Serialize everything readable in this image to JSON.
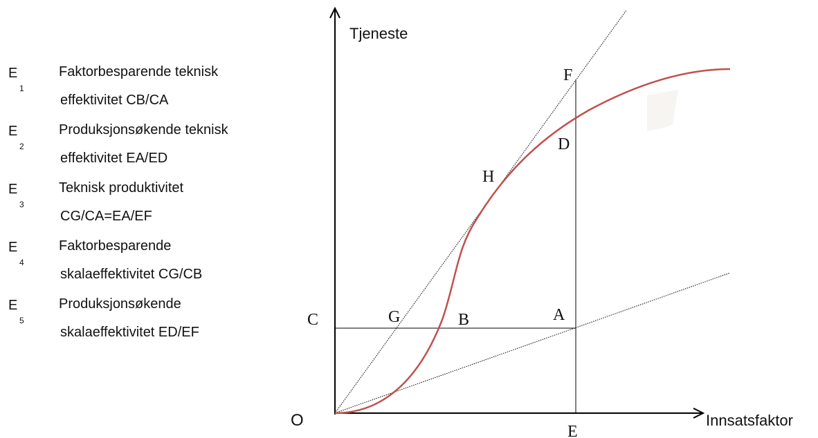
{
  "legend": [
    {
      "symbol": "E",
      "subscript": "1",
      "lines": [
        "Faktorbesparende teknisk",
        "effektivitet CB/CA"
      ]
    },
    {
      "symbol": "E",
      "subscript": "2",
      "lines": [
        "Produksjonsøkende teknisk",
        "effektivitet EA/ED"
      ]
    },
    {
      "symbol": "E",
      "subscript": "3",
      "lines": [
        "Teknisk produktivitet",
        "CG/CA=EA/EF"
      ]
    },
    {
      "symbol": "E",
      "subscript": "4",
      "lines": [
        "Faktorbesparende",
        "skalaeffektivitet CG/CB"
      ]
    },
    {
      "symbol": "E",
      "subscript": "5",
      "lines": [
        "Produksjonsøkende",
        "skalaeffektivitet ED/EF"
      ]
    }
  ],
  "axes": {
    "y_label": "Tjeneste",
    "x_label": "Innsatsfaktor",
    "origin": "O"
  },
  "points": [
    "C",
    "G",
    "B",
    "A",
    "F",
    "D",
    "H",
    "E"
  ]
}
